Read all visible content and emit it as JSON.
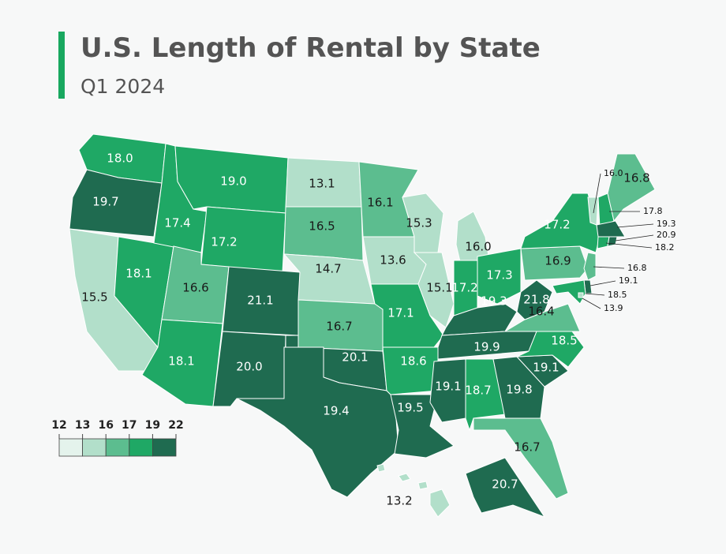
{
  "chart_data": {
    "type": "choropleth",
    "title": "U.S. Length of Rental by State",
    "subtitle": "Q1 2024",
    "values": [
      18.0,
      19.7,
      15.5,
      18.1,
      17.4,
      19.0,
      17.2,
      16.6,
      18.1,
      21.1,
      20.0,
      13.1,
      16.5,
      14.7,
      16.7,
      20.1,
      19.4,
      16.1,
      13.6,
      17.1,
      18.6,
      19.5,
      15.3,
      15.1,
      16.0,
      17.2,
      17.3,
      19.3,
      19.9,
      19.1,
      18.7,
      19.8,
      16.7,
      19.1,
      18.5,
      16.4,
      21.8,
      16.9,
      17.2,
      16.0,
      17.8,
      16.8,
      19.3,
      18.2,
      20.9,
      16.8,
      19.1,
      18.5,
      13.9,
      20.7,
      13.2
    ],
    "value_labels": [
      "18.0",
      "19.7",
      "15.5",
      "18.1",
      "17.4",
      "19.0",
      "17.2",
      "16.6",
      "18.1",
      "21.1",
      "20.0",
      "13.1",
      "16.5",
      "14.7",
      "16.7",
      "20.1",
      "19.4",
      "16.1",
      "13.6",
      "17.1",
      "18.6",
      "19.5",
      "15.3",
      "15.1",
      "16.0",
      "17.2",
      "17.3",
      "19.3",
      "19.9",
      "19.1",
      "18.7",
      "19.8",
      "16.7",
      "19.1",
      "18.5",
      "16.4",
      "21.8",
      "16.9",
      "17.2",
      "16.0",
      "17.8",
      "16.8",
      "19.3",
      "18.2",
      "20.9",
      "16.8",
      "19.1",
      "18.5",
      "13.9",
      "20.7",
      "13.2"
    ],
    "legend": {
      "breaks": [
        12,
        13,
        16,
        17,
        19,
        22
      ],
      "colors": [
        "#e4f3ec",
        "#b2dfca",
        "#5cbd8f",
        "#1fa865",
        "#1f6b50"
      ]
    }
  }
}
